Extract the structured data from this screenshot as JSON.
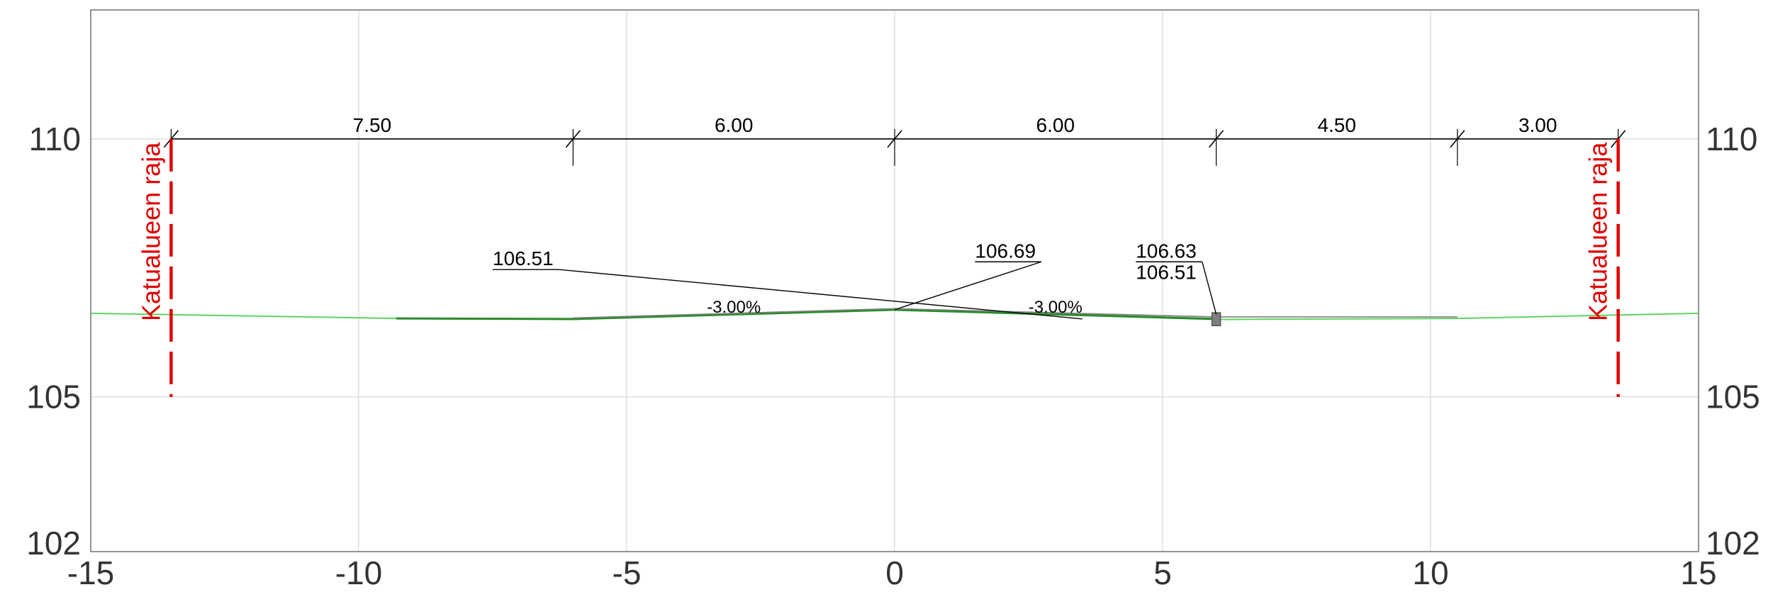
{
  "colors": {
    "frame": "#7a7a7a",
    "grid": "#d9d9d9",
    "boundary": "#e00000",
    "ground": "#5fd35f",
    "design": "#2a8a2a",
    "surface": "#7f7f7f",
    "dimension": "#000000",
    "curb": "#7f7f7f"
  },
  "chart_data": {
    "type": "cross-section",
    "title": "",
    "xlabel": "",
    "ylabel": "",
    "xlim": [
      -15,
      15
    ],
    "ylim": [
      102,
      112.5
    ],
    "grid": true,
    "x_ticks": [
      "-15",
      "-10",
      "-5",
      "0",
      "5",
      "10",
      "15"
    ],
    "x_tick_values": [
      -15,
      -10,
      -5,
      0,
      5,
      10,
      15
    ],
    "y_ticks": [
      "102",
      "105",
      "110"
    ],
    "y_tick_values": [
      102,
      105,
      110
    ],
    "dimension_line": {
      "elevation": 110,
      "stations": [
        -13.5,
        -6,
        0,
        6,
        10.5,
        13.5
      ],
      "labels": [
        "7.50",
        "6.00",
        "6.00",
        "4.50",
        "3.00"
      ]
    },
    "boundaries": [
      {
        "x": -13.5,
        "label": "Katualueen raja",
        "y_top": 110,
        "y_bottom": 105
      },
      {
        "x": 13.5,
        "label": "Katualueen raja",
        "y_top": 110,
        "y_bottom": 105
      }
    ],
    "ground_line": {
      "x": [
        -15,
        -9.3,
        -6,
        0,
        6,
        10.5,
        15
      ],
      "y": [
        106.62,
        106.52,
        106.5,
        106.68,
        106.5,
        106.52,
        106.62
      ]
    },
    "design_surface": {
      "x": [
        -9.3,
        -6,
        0,
        6
      ],
      "y": [
        106.52,
        106.51,
        106.69,
        106.51
      ]
    },
    "surface_top": {
      "x": [
        -6,
        0,
        6,
        10.5
      ],
      "y": [
        106.53,
        106.71,
        106.55,
        106.55
      ]
    },
    "curb": {
      "x": 6,
      "y_top": 106.63,
      "y_bottom": 106.38
    },
    "elevation_labels": [
      {
        "lines": [
          "106.51"
        ],
        "x": 3.5,
        "y": 106.51,
        "label_x": -7.5,
        "label_y": 107.55
      },
      {
        "lines": [
          "106.69"
        ],
        "x": 0,
        "y": 106.69,
        "label_x": 1.5,
        "label_y": 107.7
      },
      {
        "lines": [
          "106.63",
          "106.51"
        ],
        "x": 6,
        "y": 106.6,
        "label_x": 4.5,
        "label_y": 107.7
      }
    ],
    "slope_labels": [
      {
        "text": "-3.00%",
        "x": -3,
        "y": 106.63
      },
      {
        "text": "-3.00%",
        "x": 3,
        "y": 106.63
      }
    ]
  }
}
